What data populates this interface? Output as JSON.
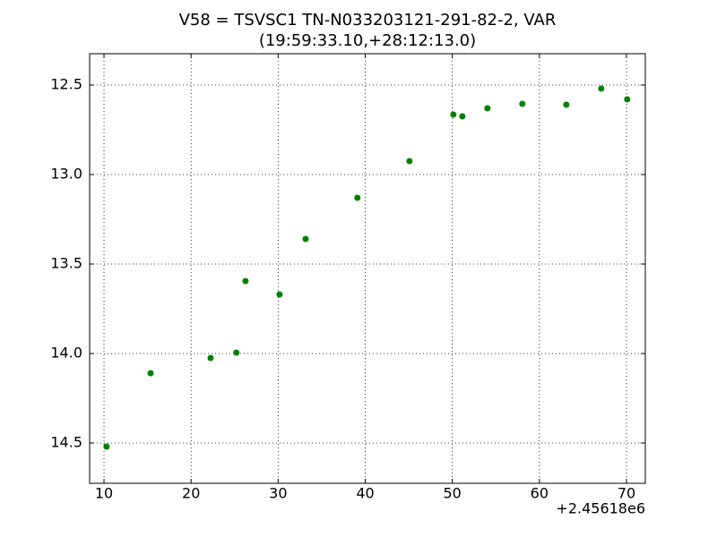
{
  "chart_data": {
    "type": "scatter",
    "title": [
      "V58 = TSVSC1 TN-N033203121-291-82-2, VAR",
      "(19:59:33.10,+28:12:13.0)"
    ],
    "x_offset_label": "+2.45618e6",
    "x": [
      10.3,
      15.35,
      22.24,
      25.2,
      26.25,
      30.16,
      33.15,
      39.1,
      45.08,
      50.12,
      51.15,
      54.03,
      58.04,
      63.09,
      67.1,
      70.08
    ],
    "values": [
      14.52,
      14.11,
      14.025,
      13.995,
      13.595,
      13.67,
      13.36,
      13.13,
      12.925,
      12.665,
      12.675,
      12.63,
      12.605,
      12.61,
      12.52,
      12.58
    ],
    "color": "#008000",
    "xlim": [
      8.35,
      72.16
    ],
    "ylim": [
      14.725,
      12.325
    ],
    "xticks": [
      10,
      20,
      30,
      40,
      50,
      60,
      70
    ],
    "yticks": [
      12.5,
      {
        "value": 13,
        "label": "13.0"
      },
      13.5,
      {
        "value": 14,
        "label": "14.0"
      },
      14.5
    ],
    "grid": true
  }
}
